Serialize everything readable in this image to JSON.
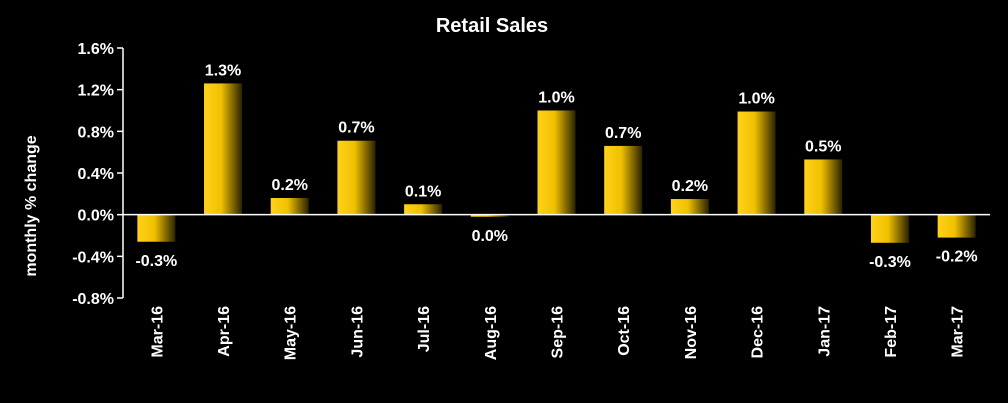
{
  "chart_data": {
    "type": "bar",
    "title": "Retail Sales",
    "ylabel": "monthly % change",
    "xlabel": "",
    "categories": [
      "Mar-16",
      "Apr-16",
      "May-16",
      "Jun-16",
      "Jul-16",
      "Aug-16",
      "Sep-16",
      "Oct-16",
      "Nov-16",
      "Dec-16",
      "Jan-17",
      "Feb-17",
      "Mar-17"
    ],
    "values": [
      -0.26,
      1.26,
      0.16,
      0.71,
      0.1,
      -0.02,
      1.0,
      0.66,
      0.15,
      0.99,
      0.53,
      -0.27,
      -0.22
    ],
    "data_labels": [
      "-0.3%",
      "1.3%",
      "0.2%",
      "0.7%",
      "0.1%",
      "0.0%",
      "1.0%",
      "0.7%",
      "0.2%",
      "1.0%",
      "0.5%",
      "-0.3%",
      "-0.2%"
    ],
    "ylim": [
      -0.8,
      1.6
    ],
    "yticks": [
      1.6,
      1.2,
      0.8,
      0.4,
      0.0,
      -0.4,
      -0.8
    ],
    "ytick_labels": [
      "1.6%",
      "1.2%",
      "0.8%",
      "0.4%",
      "0.0%",
      "-0.4%",
      "-0.8%"
    ],
    "grid": false,
    "legend": "none",
    "colors": {
      "background": "#000000",
      "axis": "#ffffff",
      "bar_light": "#ffd21a",
      "bar_dark": "#2a2300",
      "text": "#ffffff"
    }
  }
}
